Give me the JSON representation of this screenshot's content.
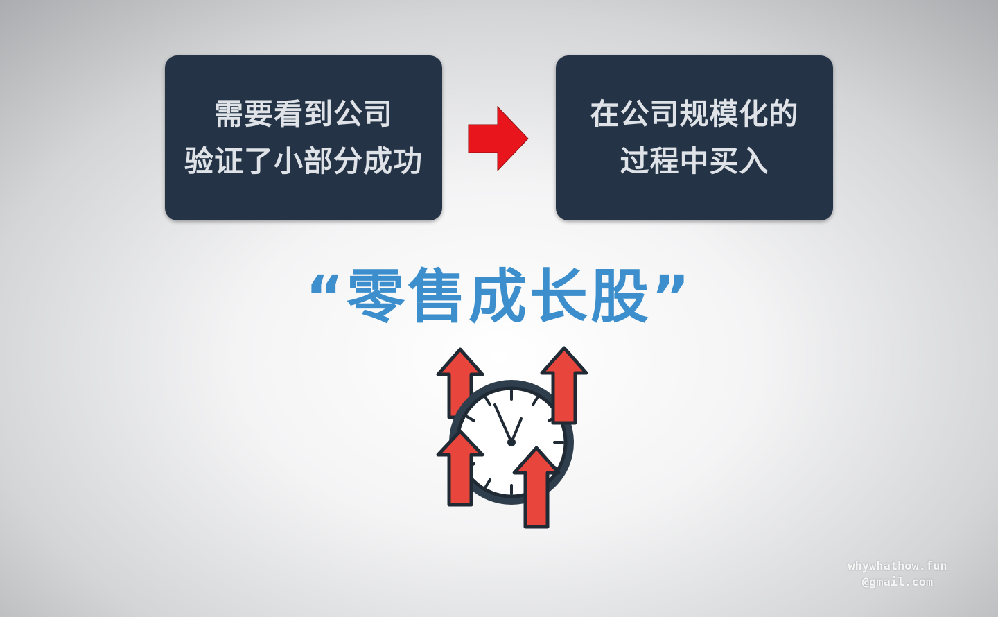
{
  "left_box": {
    "lines": [
      "需要看到公司",
      "验证了小部分成功"
    ]
  },
  "right_box": {
    "lines": [
      "在公司规模化的",
      "过程中买入"
    ]
  },
  "arrow": {
    "icon": "red-right-arrow-icon",
    "color": "#e8161c"
  },
  "title": {
    "text": "“零售成长股”",
    "color": "#3c8fcc"
  },
  "illustration": {
    "icon": "clock-with-up-arrows-icon",
    "arrow_color": "#e8463c",
    "clock_face_color": "#ffffff",
    "clock_ring_color": "#2f3e4c"
  },
  "watermark": {
    "line1": "whywhathow.fun",
    "line2": "@gmail.com"
  },
  "colors": {
    "box_background": "#243446",
    "box_text": "#dfe3e8"
  }
}
